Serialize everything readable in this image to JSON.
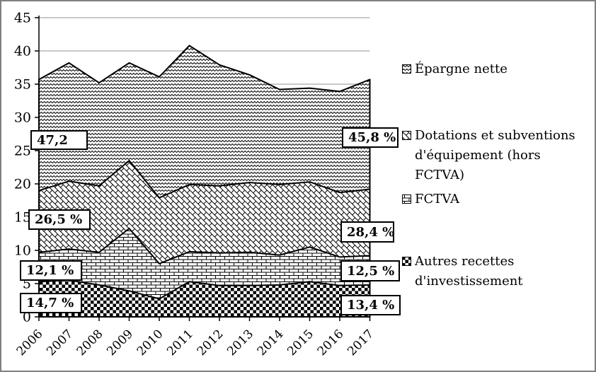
{
  "figure": {
    "background": "#ffffff",
    "border_color": "#808080",
    "gridline_color": "#909090",
    "ink_color": "#000000"
  },
  "chart_data": {
    "type": "area",
    "stacked": true,
    "categories": [
      "2006",
      "2007",
      "2008",
      "2009",
      "2010",
      "2011",
      "2012",
      "2013",
      "2014",
      "2015",
      "2016",
      "2017"
    ],
    "series": [
      {
        "name": "Autres recettes d'investissement",
        "pattern": "checkerboard",
        "values": [
          5.3,
          5.5,
          4.8,
          3.9,
          2.7,
          5.3,
          4.7,
          4.7,
          4.8,
          5.3,
          4.7,
          4.8
        ]
      },
      {
        "name": "FCTVA",
        "pattern": "brick",
        "values": [
          4.4,
          4.7,
          4.9,
          9.4,
          5.3,
          4.5,
          4.9,
          5.0,
          4.5,
          5.2,
          4.3,
          4.4
        ]
      },
      {
        "name": "Dotations et subventions d'équipement (hors FCTVA)",
        "pattern": "diagonal-brick",
        "values": [
          9.3,
          10.2,
          10.0,
          10.2,
          9.9,
          10.1,
          10.1,
          10.5,
          10.6,
          9.8,
          9.7,
          10.0
        ]
      },
      {
        "name": "Épargne nette",
        "pattern": "wave",
        "values": [
          16.7,
          17.8,
          15.5,
          14.7,
          18.2,
          20.9,
          18.2,
          16.2,
          14.3,
          14.1,
          15.2,
          16.5
        ]
      }
    ],
    "title": "",
    "xlabel": "",
    "ylabel": "",
    "ylim": [
      0,
      45
    ],
    "ytick_step": 5,
    "yticks": [
      "0",
      "5",
      "10",
      "15",
      "20",
      "25",
      "30",
      "35",
      "40",
      "45"
    ],
    "grid": true,
    "legend_position": "right",
    "annotations": {
      "left": [
        "47,2",
        "26,5 %",
        "12,1 %",
        "14,7 %"
      ],
      "right": [
        "45,8 %",
        "28,4 %",
        "12,5 %",
        "13,4 %"
      ]
    }
  },
  "legend": {
    "items": [
      {
        "label": "Épargne nette",
        "pattern": "wave"
      },
      {
        "label": "Dotations et subventions d'équipement (hors FCTVA)",
        "pattern": "diagonal-brick"
      },
      {
        "label": "FCTVA",
        "pattern": "brick"
      },
      {
        "label": "Autres recettes d'investissement",
        "pattern": "checkerboard"
      }
    ]
  }
}
